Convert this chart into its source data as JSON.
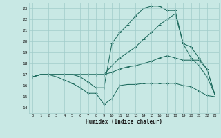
{
  "xlabel": "Humidex (Indice chaleur)",
  "bg_color": "#c8e8e4",
  "grid_color": "#a0ccca",
  "line_color": "#1e6b5e",
  "xlim": [
    -0.5,
    23.5
  ],
  "ylim": [
    13.5,
    23.5
  ],
  "xticks": [
    0,
    1,
    2,
    3,
    4,
    5,
    6,
    7,
    8,
    9,
    10,
    11,
    12,
    13,
    14,
    15,
    16,
    17,
    18,
    19,
    20,
    21,
    22,
    23
  ],
  "yticks": [
    14,
    15,
    16,
    17,
    18,
    19,
    20,
    21,
    22,
    23
  ],
  "curves": [
    {
      "x": [
        0,
        1,
        2,
        3,
        4,
        5,
        6,
        7,
        8,
        9,
        10,
        11,
        12,
        13,
        14,
        15,
        16,
        17,
        18,
        19,
        20,
        21,
        22,
        23
      ],
      "y": [
        16.8,
        17.0,
        17.0,
        16.8,
        16.5,
        16.2,
        15.8,
        15.3,
        15.3,
        14.3,
        14.8,
        16.0,
        16.1,
        16.1,
        16.2,
        16.2,
        16.2,
        16.2,
        16.2,
        16.0,
        15.9,
        15.5,
        15.1,
        15.0
      ]
    },
    {
      "x": [
        0,
        1,
        2,
        3,
        4,
        5,
        6,
        7,
        8,
        9,
        10,
        11,
        12,
        13,
        14,
        15,
        16,
        17,
        18,
        19,
        20,
        21,
        22,
        23
      ],
      "y": [
        16.8,
        17.0,
        17.0,
        17.0,
        17.0,
        17.0,
        17.0,
        17.0,
        17.0,
        17.0,
        17.2,
        17.5,
        17.7,
        17.8,
        18.0,
        18.2,
        18.5,
        18.7,
        18.5,
        18.3,
        18.3,
        18.3,
        17.5,
        15.2
      ]
    },
    {
      "x": [
        0,
        1,
        2,
        3,
        4,
        5,
        6,
        7,
        8,
        9,
        10,
        11,
        12,
        13,
        14,
        15,
        16,
        17,
        18,
        19,
        20,
        21,
        22,
        23
      ],
      "y": [
        16.8,
        17.0,
        17.0,
        17.0,
        17.0,
        17.0,
        17.0,
        17.0,
        17.0,
        17.0,
        17.8,
        18.5,
        19.0,
        19.5,
        20.2,
        20.8,
        21.5,
        22.0,
        22.5,
        19.8,
        19.5,
        18.5,
        17.5,
        15.2
      ]
    },
    {
      "x": [
        0,
        1,
        2,
        3,
        4,
        5,
        6,
        7,
        8,
        9,
        10,
        11,
        12,
        13,
        14,
        15,
        16,
        17,
        18,
        19,
        20,
        21,
        22,
        23
      ],
      "y": [
        16.8,
        17.0,
        17.0,
        17.0,
        17.0,
        17.0,
        16.8,
        16.3,
        15.8,
        15.8,
        19.8,
        20.8,
        21.5,
        22.3,
        23.0,
        23.2,
        23.2,
        22.8,
        22.8,
        19.8,
        18.5,
        17.8,
        16.8,
        15.2
      ]
    }
  ]
}
